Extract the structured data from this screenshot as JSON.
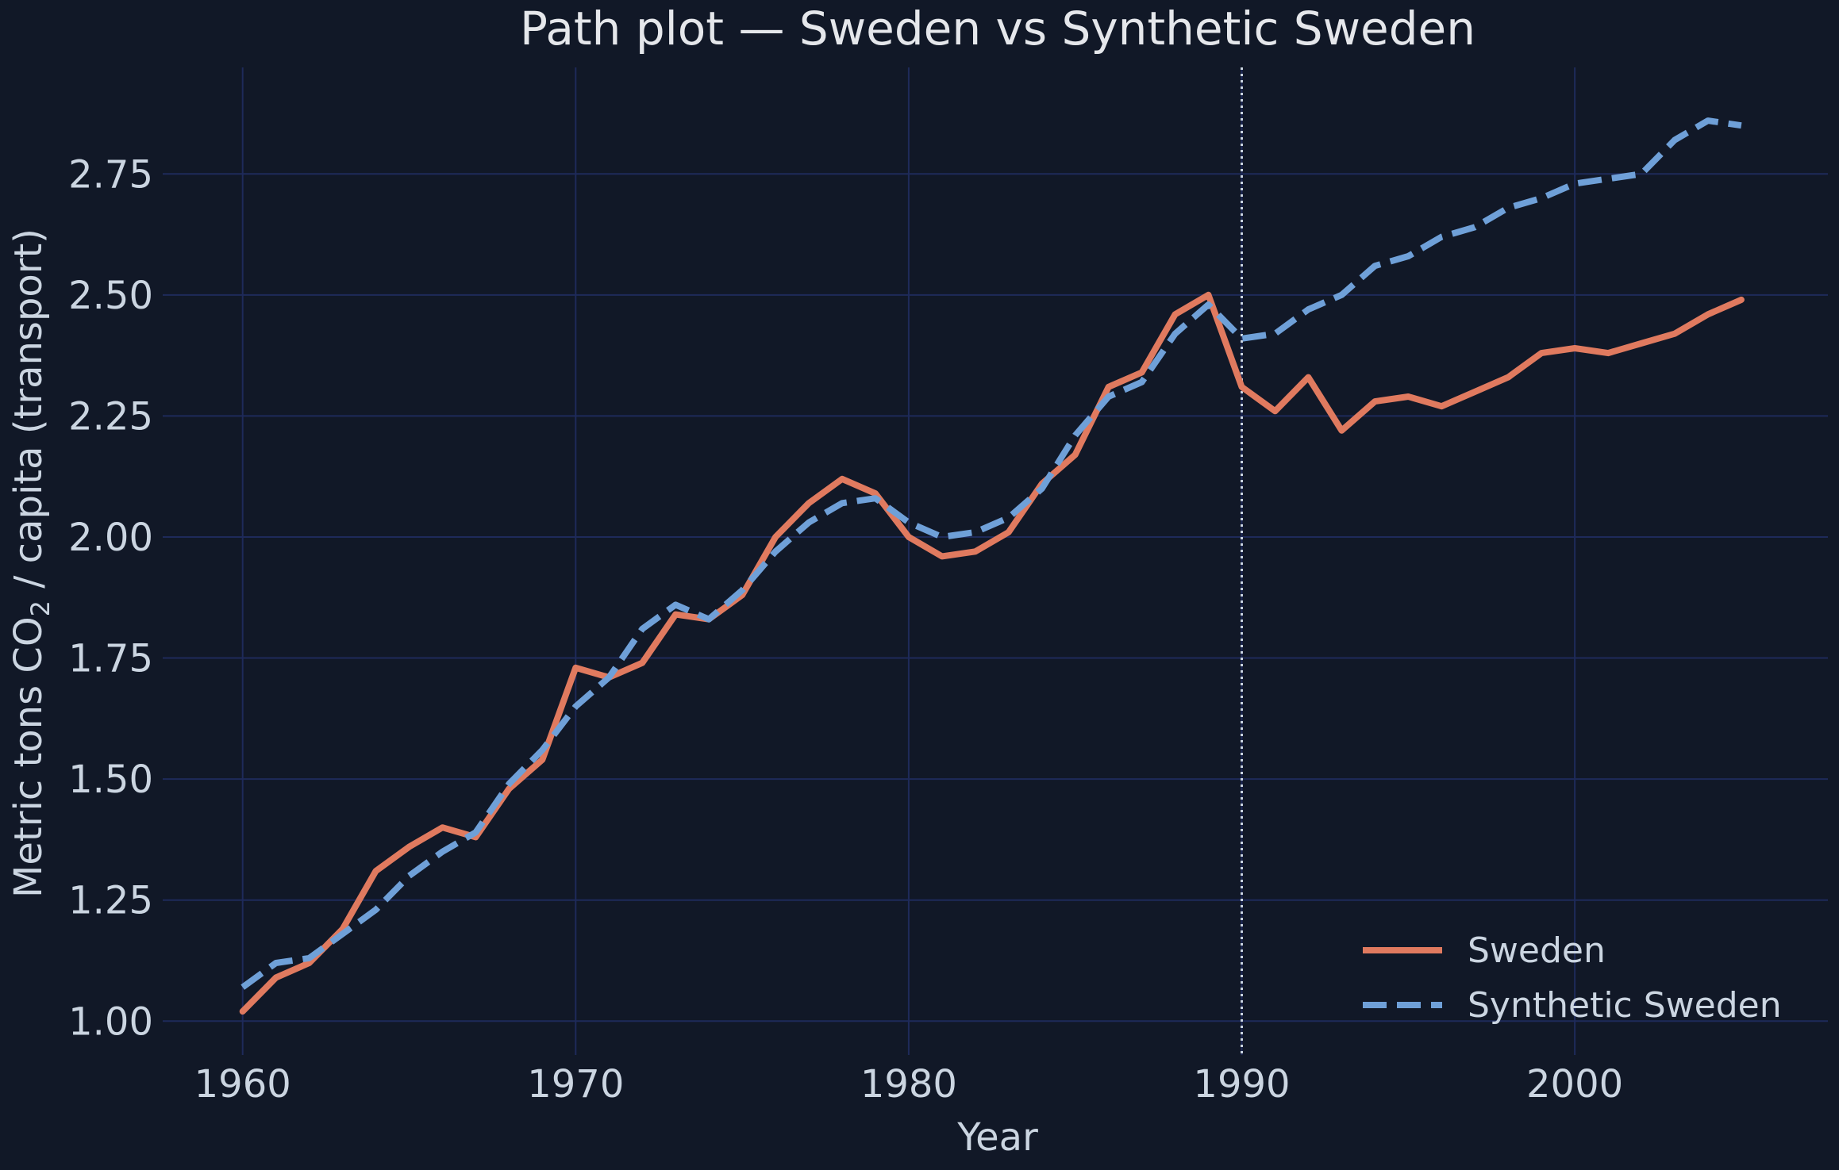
{
  "chart_data": {
    "type": "line",
    "title": "Path plot — Sweden vs Synthetic Sweden",
    "xlabel": "Year",
    "ylabel_prefix": "Metric tons CO",
    "ylabel_subscript": "2",
    "ylabel_suffix": " / capita (transport)",
    "xlim": [
      1957.6,
      2007.6
    ],
    "ylim": [
      0.93,
      2.97
    ],
    "x_ticks": [
      1960,
      1970,
      1980,
      1990,
      2000
    ],
    "x_tick_labels": [
      "1960",
      "1970",
      "1980",
      "1990",
      "2000"
    ],
    "y_ticks": [
      1.0,
      1.25,
      1.5,
      1.75,
      2.0,
      2.25,
      2.5,
      2.75
    ],
    "y_tick_labels": [
      "1.00",
      "1.25",
      "1.50",
      "1.75",
      "2.00",
      "2.25",
      "2.50",
      "2.75"
    ],
    "grid": true,
    "treatment_year": 1990,
    "legend_position": "lower-right",
    "x": [
      1960,
      1961,
      1962,
      1963,
      1964,
      1965,
      1966,
      1967,
      1968,
      1969,
      1970,
      1971,
      1972,
      1973,
      1974,
      1975,
      1976,
      1977,
      1978,
      1979,
      1980,
      1981,
      1982,
      1983,
      1984,
      1985,
      1986,
      1987,
      1988,
      1989,
      1990,
      1991,
      1992,
      1993,
      1994,
      1995,
      1996,
      1997,
      1998,
      1999,
      2000,
      2001,
      2002,
      2003,
      2004,
      2005
    ],
    "series": [
      {
        "name": "Sweden",
        "color": "#e07a5f",
        "style": "solid",
        "values": [
          1.02,
          1.09,
          1.12,
          1.19,
          1.31,
          1.36,
          1.4,
          1.38,
          1.48,
          1.54,
          1.73,
          1.71,
          1.74,
          1.84,
          1.83,
          1.88,
          2.0,
          2.07,
          2.12,
          2.09,
          2.0,
          1.96,
          1.97,
          2.01,
          2.11,
          2.17,
          2.31,
          2.34,
          2.46,
          2.5,
          2.31,
          2.26,
          2.33,
          2.22,
          2.28,
          2.29,
          2.27,
          2.3,
          2.33,
          2.38,
          2.39,
          2.38,
          2.4,
          2.42,
          2.46,
          2.49
        ]
      },
      {
        "name": "Synthetic Sweden",
        "color": "#6fa0d8",
        "style": "dashed",
        "values": [
          1.07,
          1.12,
          1.13,
          1.18,
          1.23,
          1.3,
          1.35,
          1.39,
          1.49,
          1.56,
          1.65,
          1.71,
          1.81,
          1.86,
          1.83,
          1.89,
          1.97,
          2.03,
          2.07,
          2.08,
          2.03,
          2.0,
          2.01,
          2.04,
          2.1,
          2.21,
          2.29,
          2.32,
          2.42,
          2.48,
          2.41,
          2.42,
          2.47,
          2.5,
          2.56,
          2.58,
          2.62,
          2.64,
          2.68,
          2.7,
          2.73,
          2.74,
          2.75,
          2.82,
          2.86,
          2.85
        ]
      }
    ]
  }
}
